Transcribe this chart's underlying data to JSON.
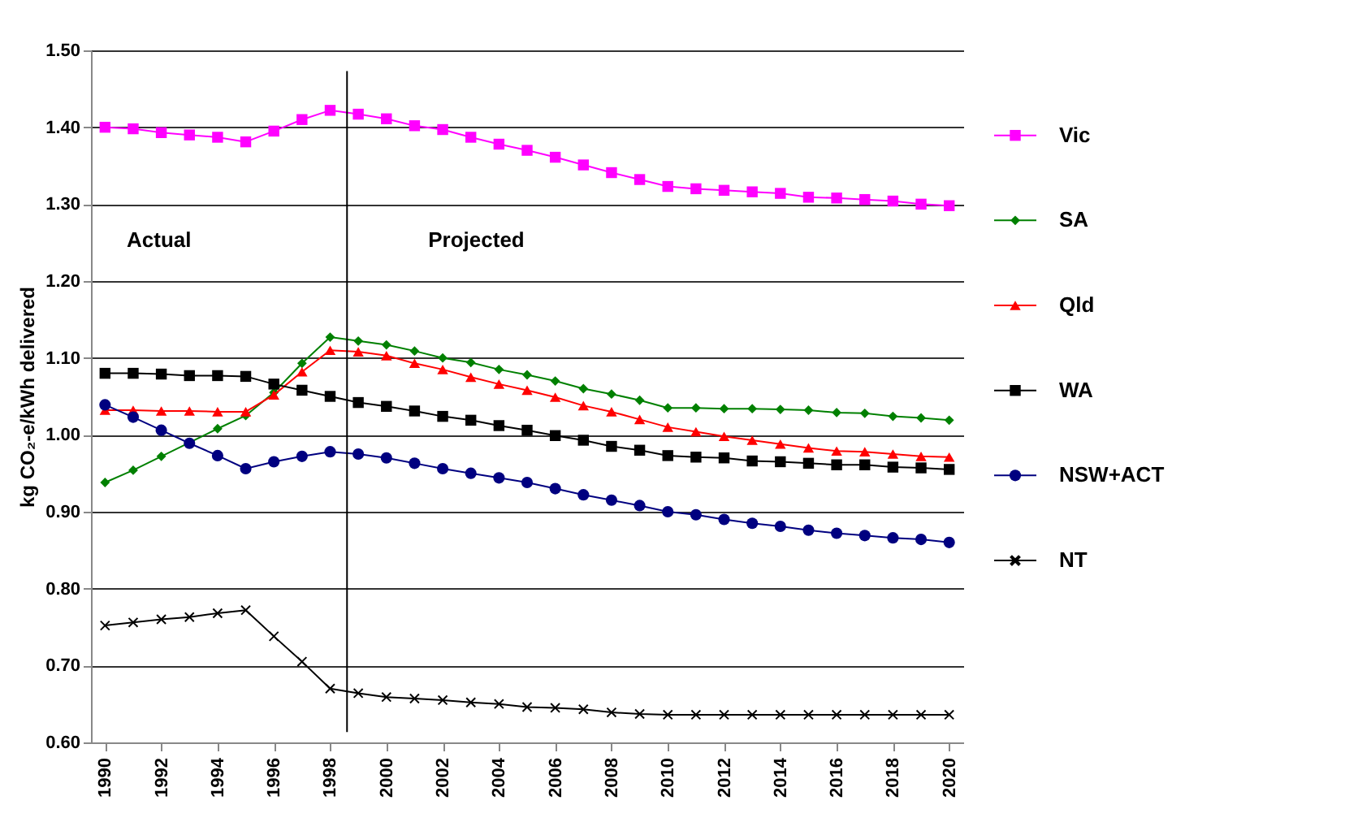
{
  "chart_data": {
    "type": "line",
    "ylabel": "kg CO₂-e/kWh delivered",
    "x": [
      1990,
      1991,
      1992,
      1993,
      1994,
      1995,
      1996,
      1997,
      1998,
      1999,
      2000,
      2001,
      2002,
      2003,
      2004,
      2005,
      2006,
      2007,
      2008,
      2009,
      2010,
      2011,
      2012,
      2013,
      2014,
      2015,
      2016,
      2017,
      2018,
      2019,
      2020
    ],
    "xlim": [
      1989.5,
      2020.5
    ],
    "xticks": [
      1990,
      1992,
      1994,
      1996,
      1998,
      2000,
      2002,
      2004,
      2006,
      2008,
      2010,
      2012,
      2014,
      2016,
      2018,
      2020
    ],
    "ylim": [
      0.6,
      1.5
    ],
    "yticks": [
      {
        "value": 0.6,
        "label": "0.60"
      },
      {
        "value": 0.7,
        "label": "0.70"
      },
      {
        "value": 0.8,
        "label": "0.80"
      },
      {
        "value": 0.9,
        "label": "0.90"
      },
      {
        "value": 1.0,
        "label": "1.00"
      },
      {
        "value": 1.1,
        "label": "1.10"
      },
      {
        "value": 1.2,
        "label": "1.20"
      },
      {
        "value": 1.3,
        "label": "1.30"
      },
      {
        "value": 1.4,
        "label": "1.40"
      },
      {
        "value": 1.5,
        "label": "1.50"
      }
    ],
    "grid": "y",
    "legend": "right",
    "series": [
      {
        "name": "Vic",
        "color": "#ff00ff",
        "marker": "square",
        "values": [
          1.4,
          1.398,
          1.393,
          1.39,
          1.387,
          1.381,
          1.395,
          1.41,
          1.422,
          1.417,
          1.411,
          1.402,
          1.397,
          1.387,
          1.378,
          1.37,
          1.361,
          1.351,
          1.341,
          1.332,
          1.323,
          1.32,
          1.318,
          1.316,
          1.314,
          1.309,
          1.308,
          1.306,
          1.304,
          1.3,
          1.298
        ]
      },
      {
        "name": "SA",
        "color": "#008000",
        "marker": "diamond",
        "values": [
          0.938,
          0.954,
          0.972,
          0.99,
          1.008,
          1.025,
          1.055,
          1.093,
          1.127,
          1.122,
          1.117,
          1.109,
          1.1,
          1.094,
          1.085,
          1.078,
          1.07,
          1.06,
          1.053,
          1.045,
          1.035,
          1.035,
          1.034,
          1.034,
          1.033,
          1.032,
          1.029,
          1.028,
          1.024,
          1.022,
          1.019
        ]
      },
      {
        "name": "Qld",
        "color": "#ff0000",
        "marker": "triangle",
        "values": [
          1.032,
          1.032,
          1.031,
          1.031,
          1.03,
          1.03,
          1.052,
          1.082,
          1.11,
          1.108,
          1.103,
          1.093,
          1.085,
          1.075,
          1.066,
          1.058,
          1.049,
          1.038,
          1.03,
          1.02,
          1.01,
          1.004,
          0.998,
          0.993,
          0.988,
          0.983,
          0.979,
          0.978,
          0.975,
          0.972,
          0.971
        ]
      },
      {
        "name": "WA",
        "color": "#000000",
        "marker": "square",
        "values": [
          1.08,
          1.08,
          1.079,
          1.077,
          1.077,
          1.076,
          1.066,
          1.058,
          1.05,
          1.042,
          1.037,
          1.031,
          1.024,
          1.019,
          1.012,
          1.006,
          0.999,
          0.993,
          0.985,
          0.98,
          0.973,
          0.971,
          0.97,
          0.966,
          0.965,
          0.963,
          0.961,
          0.961,
          0.958,
          0.957,
          0.955
        ]
      },
      {
        "name": "NSW+ACT",
        "color": "#000080",
        "marker": "circle",
        "values": [
          1.039,
          1.023,
          1.006,
          0.989,
          0.973,
          0.956,
          0.965,
          0.972,
          0.978,
          0.975,
          0.97,
          0.963,
          0.956,
          0.95,
          0.944,
          0.938,
          0.93,
          0.922,
          0.915,
          0.908,
          0.9,
          0.896,
          0.89,
          0.885,
          0.881,
          0.876,
          0.872,
          0.869,
          0.866,
          0.864,
          0.86
        ]
      },
      {
        "name": "NT",
        "color": "#000000",
        "marker": "cross",
        "values": [
          0.752,
          0.756,
          0.76,
          0.763,
          0.768,
          0.772,
          0.738,
          0.705,
          0.67,
          0.664,
          0.659,
          0.657,
          0.655,
          0.652,
          0.65,
          0.646,
          0.645,
          0.643,
          0.639,
          0.637,
          0.636,
          0.636,
          0.636,
          0.636,
          0.636,
          0.636,
          0.636,
          0.636,
          0.636,
          0.636,
          0.636
        ]
      }
    ],
    "ref_lines": [
      {
        "axis": "x",
        "value": 1998.6,
        "color": "#000000"
      }
    ],
    "annotations": [
      "Actual",
      "Projected"
    ]
  }
}
